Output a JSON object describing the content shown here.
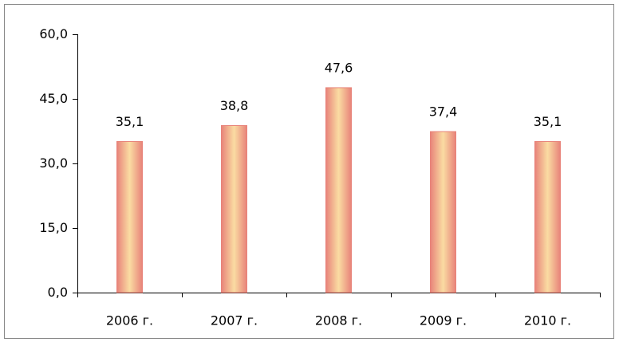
{
  "chart_data": {
    "type": "bar",
    "categories": [
      "2006 г.",
      "2007 г.",
      "2008 г.",
      "2009 г.",
      "2010 г."
    ],
    "values": [
      35.1,
      38.8,
      47.6,
      37.4,
      35.1
    ],
    "value_labels": [
      "35,1",
      "38,8",
      "47,6",
      "37,4",
      "35,1"
    ],
    "color": "#e8837a",
    "ylim": [
      0,
      60
    ],
    "yticks": [
      {
        "value": 0,
        "label": "0,0"
      },
      {
        "value": 15,
        "label": "15,0"
      },
      {
        "value": 30,
        "label": "30,0"
      },
      {
        "value": 45,
        "label": "45,0"
      },
      {
        "value": 60,
        "label": "60,0"
      }
    ],
    "grid": false
  }
}
